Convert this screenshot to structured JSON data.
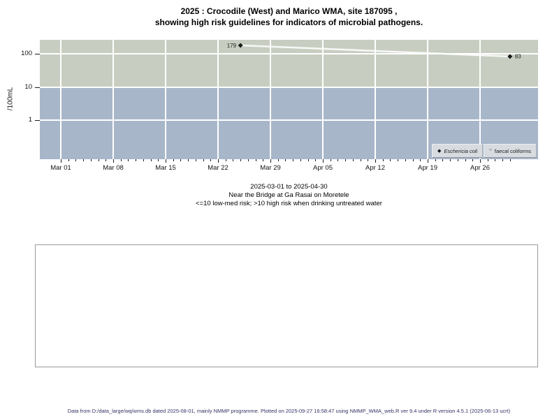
{
  "title": {
    "line1": "2025 : Crocodile (West) and Marico WMA, site 187095 ,",
    "line2": "showing high risk guidelines for indicators of microbial pathogens."
  },
  "chart_data": {
    "type": "scatter",
    "title": "2025 : Crocodile (West) and Marico WMA, site 187095, showing high risk guidelines for indicators of microbial pathogens.",
    "ylabel": "/100mL",
    "y_scale": "log10",
    "y_ticks": [
      100,
      10,
      1
    ],
    "x_ticks": [
      "Mar 01",
      "Mar 08",
      "Mar 15",
      "Mar 22",
      "Mar 29",
      "Apr 05",
      "Apr 12",
      "Apr 19",
      "Apr 26"
    ],
    "x_range_days": [
      0,
      60
    ],
    "grid": true,
    "legend_position": "bottom-right",
    "high_risk_threshold": 10,
    "bands": [
      {
        "name": "high-risk",
        "range": ">10 /100mL",
        "color": "#c7cec1"
      },
      {
        "name": "low-med-risk",
        "range": "<=10 /100mL",
        "color": "#a8b6ca"
      }
    ],
    "series": [
      {
        "name": "Eschericia coli",
        "marker": "filled-diamond",
        "points": [
          {
            "date": "2025-03-25",
            "day": 24,
            "value": 179,
            "label": "179",
            "label_side": "left"
          },
          {
            "date": "2025-04-30",
            "day": 60,
            "value": 83,
            "label": "83",
            "label_side": "right"
          }
        ]
      },
      {
        "name": "faecal coliforms",
        "marker": "open-circle",
        "points": []
      }
    ]
  },
  "legend": {
    "items": [
      {
        "label": "Eschericia coli",
        "marker": "◆",
        "italic": true
      },
      {
        "label": "faecal coliforms",
        "marker": "○",
        "italic": false
      }
    ]
  },
  "subtitle": {
    "line1": "2025-03-01 to 2025-04-30",
    "line2": "Near the Bridge at Ga Rasai on Moretele",
    "line3": "<=10 low-med risk; >10 high risk when drinking untreated water"
  },
  "footer": {
    "text": "Data from D:/data_large/wq/wms.db dated 2025-08-01, mainly NMMP programme. Plotted on 2025-09-27 16:58:47 using NMMP_WMA_web.R ver 9.4 under R version 4.5.1 (2025-06-13 ucrt)"
  },
  "colors": {
    "high_risk_band": "#c7cec1",
    "low_med_band": "#a8b6ca",
    "grid": "#ffffff",
    "point": "#1a1a1a",
    "trend_line": "rgba(255,255,255,0.85)",
    "legend_bg": "#d8dce0",
    "footer_text": "#333366"
  }
}
